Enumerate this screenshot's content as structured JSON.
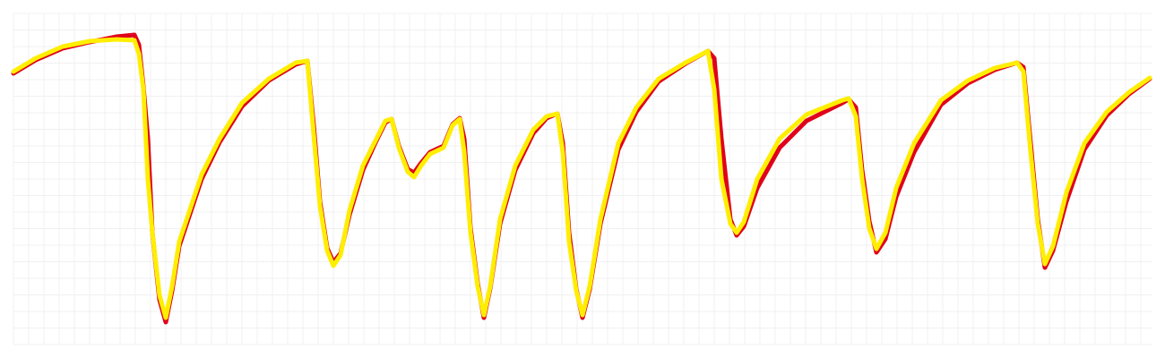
{
  "chart_data": {
    "type": "line",
    "x": [
      0,
      25,
      55,
      85,
      115,
      135,
      140,
      145,
      150,
      155,
      163,
      170,
      177,
      185,
      195,
      210,
      230,
      255,
      285,
      315,
      328,
      335,
      342,
      350,
      357,
      365,
      375,
      390,
      405,
      415,
      422,
      430,
      440,
      447,
      455,
      465,
      480,
      490,
      498,
      503,
      510,
      518,
      525,
      532,
      543,
      560,
      580,
      595,
      607,
      613,
      620,
      628,
      635,
      643,
      655,
      675,
      695,
      720,
      750,
      775,
      782,
      790,
      800,
      807,
      815,
      830,
      855,
      885,
      925,
      932,
      940,
      947,
      955,
      963,
      973,
      985,
      1005,
      1035,
      1065,
      1095,
      1120,
      1127,
      1135,
      1143,
      1151,
      1160,
      1175,
      1195,
      1220,
      1245,
      1268
    ],
    "series": [
      {
        "name": "red",
        "color": "#e0001b",
        "values": [
          303,
          318,
          331,
          338,
          344,
          346,
          335,
          288,
          230,
          125,
          50,
          25,
          60,
          110,
          140,
          185,
          226,
          266,
          295,
          313,
          317,
          245,
          160,
          108,
          92,
          102,
          145,
          195,
          228,
          248,
          252,
          222,
          196,
          192,
          203,
          215,
          222,
          246,
          253,
          230,
          130,
          68,
          30,
          63,
          135,
          195,
          236,
          253,
          258,
          225,
          125,
          62,
          30,
          62,
          135,
          218,
          260,
          294,
          314,
          328,
          320,
          230,
          140,
          122,
          132,
          175,
          220,
          250,
          270,
          274,
          265,
          195,
          138,
          103,
          118,
          165,
          215,
          268,
          292,
          307,
          315,
          310,
          225,
          140,
          86,
          105,
          160,
          218,
          256,
          280,
          297
        ]
      },
      {
        "name": "yellow",
        "color": "#ffee00",
        "values": [
          305,
          320,
          333,
          339,
          341,
          340,
          325,
          285,
          185,
          125,
          55,
          30,
          65,
          115,
          145,
          190,
          230,
          270,
          297,
          315,
          317,
          235,
          155,
          105,
          88,
          100,
          150,
          200,
          230,
          250,
          252,
          220,
          193,
          187,
          200,
          213,
          220,
          245,
          252,
          215,
          125,
          65,
          33,
          65,
          140,
          200,
          240,
          255,
          258,
          215,
          115,
          60,
          33,
          65,
          140,
          225,
          265,
          297,
          315,
          328,
          285,
          185,
          135,
          125,
          137,
          185,
          230,
          257,
          273,
          275,
          255,
          185,
          130,
          107,
          125,
          175,
          225,
          273,
          295,
          309,
          315,
          305,
          215,
          135,
          90,
          110,
          170,
          225,
          260,
          282,
          298
        ]
      }
    ],
    "xlim": [
      0,
      1270
    ],
    "ylim": [
      0,
      370
    ],
    "xticks": [
      0,
      17,
      34,
      51,
      68,
      85,
      102,
      119,
      136,
      153,
      170,
      187,
      204,
      221,
      238,
      255,
      272,
      289,
      306,
      323,
      340,
      357,
      374,
      391,
      408,
      425,
      442,
      459,
      476,
      493,
      510,
      527,
      544,
      561,
      578,
      595,
      612,
      629,
      646,
      663,
      680,
      697,
      714,
      731,
      748,
      765,
      782,
      799,
      816,
      833,
      850,
      867,
      884,
      901,
      918,
      935,
      952,
      969,
      986,
      1003,
      1020,
      1037,
      1054,
      1071,
      1088,
      1105,
      1122,
      1139,
      1156,
      1173,
      1190,
      1207,
      1224,
      1241,
      1258
    ],
    "yticks": [
      0,
      18.5,
      37,
      55.5,
      74,
      92.5,
      111,
      129.5,
      148,
      166.5,
      185,
      203.5,
      222,
      240.5,
      259,
      277.5,
      296,
      314.5,
      333,
      351.5,
      370
    ],
    "grid": true
  }
}
